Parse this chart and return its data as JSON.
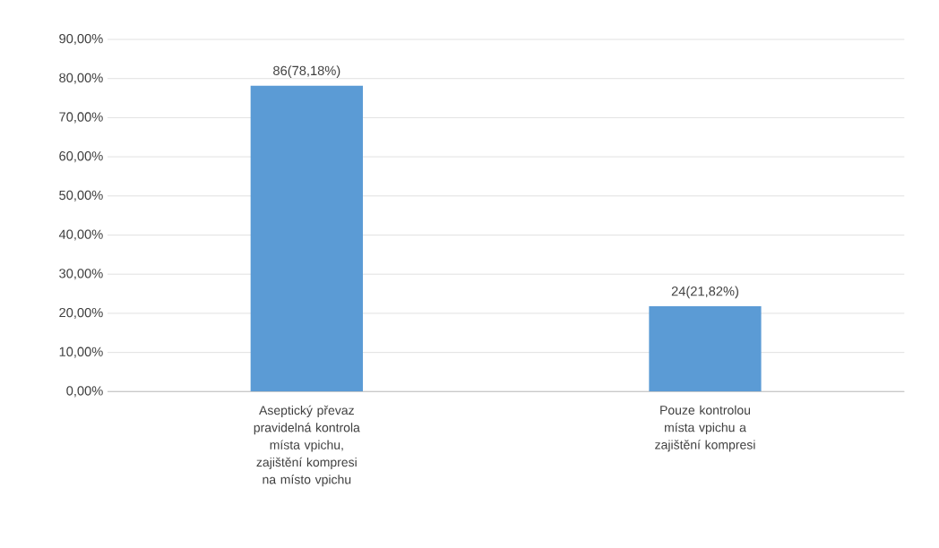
{
  "chart_data": {
    "type": "bar",
    "categories": [
      "Aseptický převaz pravidelná kontrola místa vpichu, zajištění kompresi na místo vpichu",
      "Pouze kontrolou místa vpichu a zajištění kompresi"
    ],
    "values": [
      78.18,
      21.82
    ],
    "value_labels": [
      "86(78,18%)",
      "24(21,82%)"
    ],
    "color": "#5b9bd5",
    "ylim": [
      0,
      90
    ],
    "yticks": [
      {
        "value": 0,
        "label": "0,00%"
      },
      {
        "value": 10,
        "label": "10,00%"
      },
      {
        "value": 20,
        "label": "20,00%"
      },
      {
        "value": 30,
        "label": "30,00%"
      },
      {
        "value": 40,
        "label": "40,00%"
      },
      {
        "value": 50,
        "label": "50,00%"
      },
      {
        "value": 60,
        "label": "60,00%"
      },
      {
        "value": 70,
        "label": "70,00%"
      },
      {
        "value": 80,
        "label": "80,00%"
      },
      {
        "value": 90,
        "label": "90,00%"
      }
    ],
    "grid": "y"
  }
}
